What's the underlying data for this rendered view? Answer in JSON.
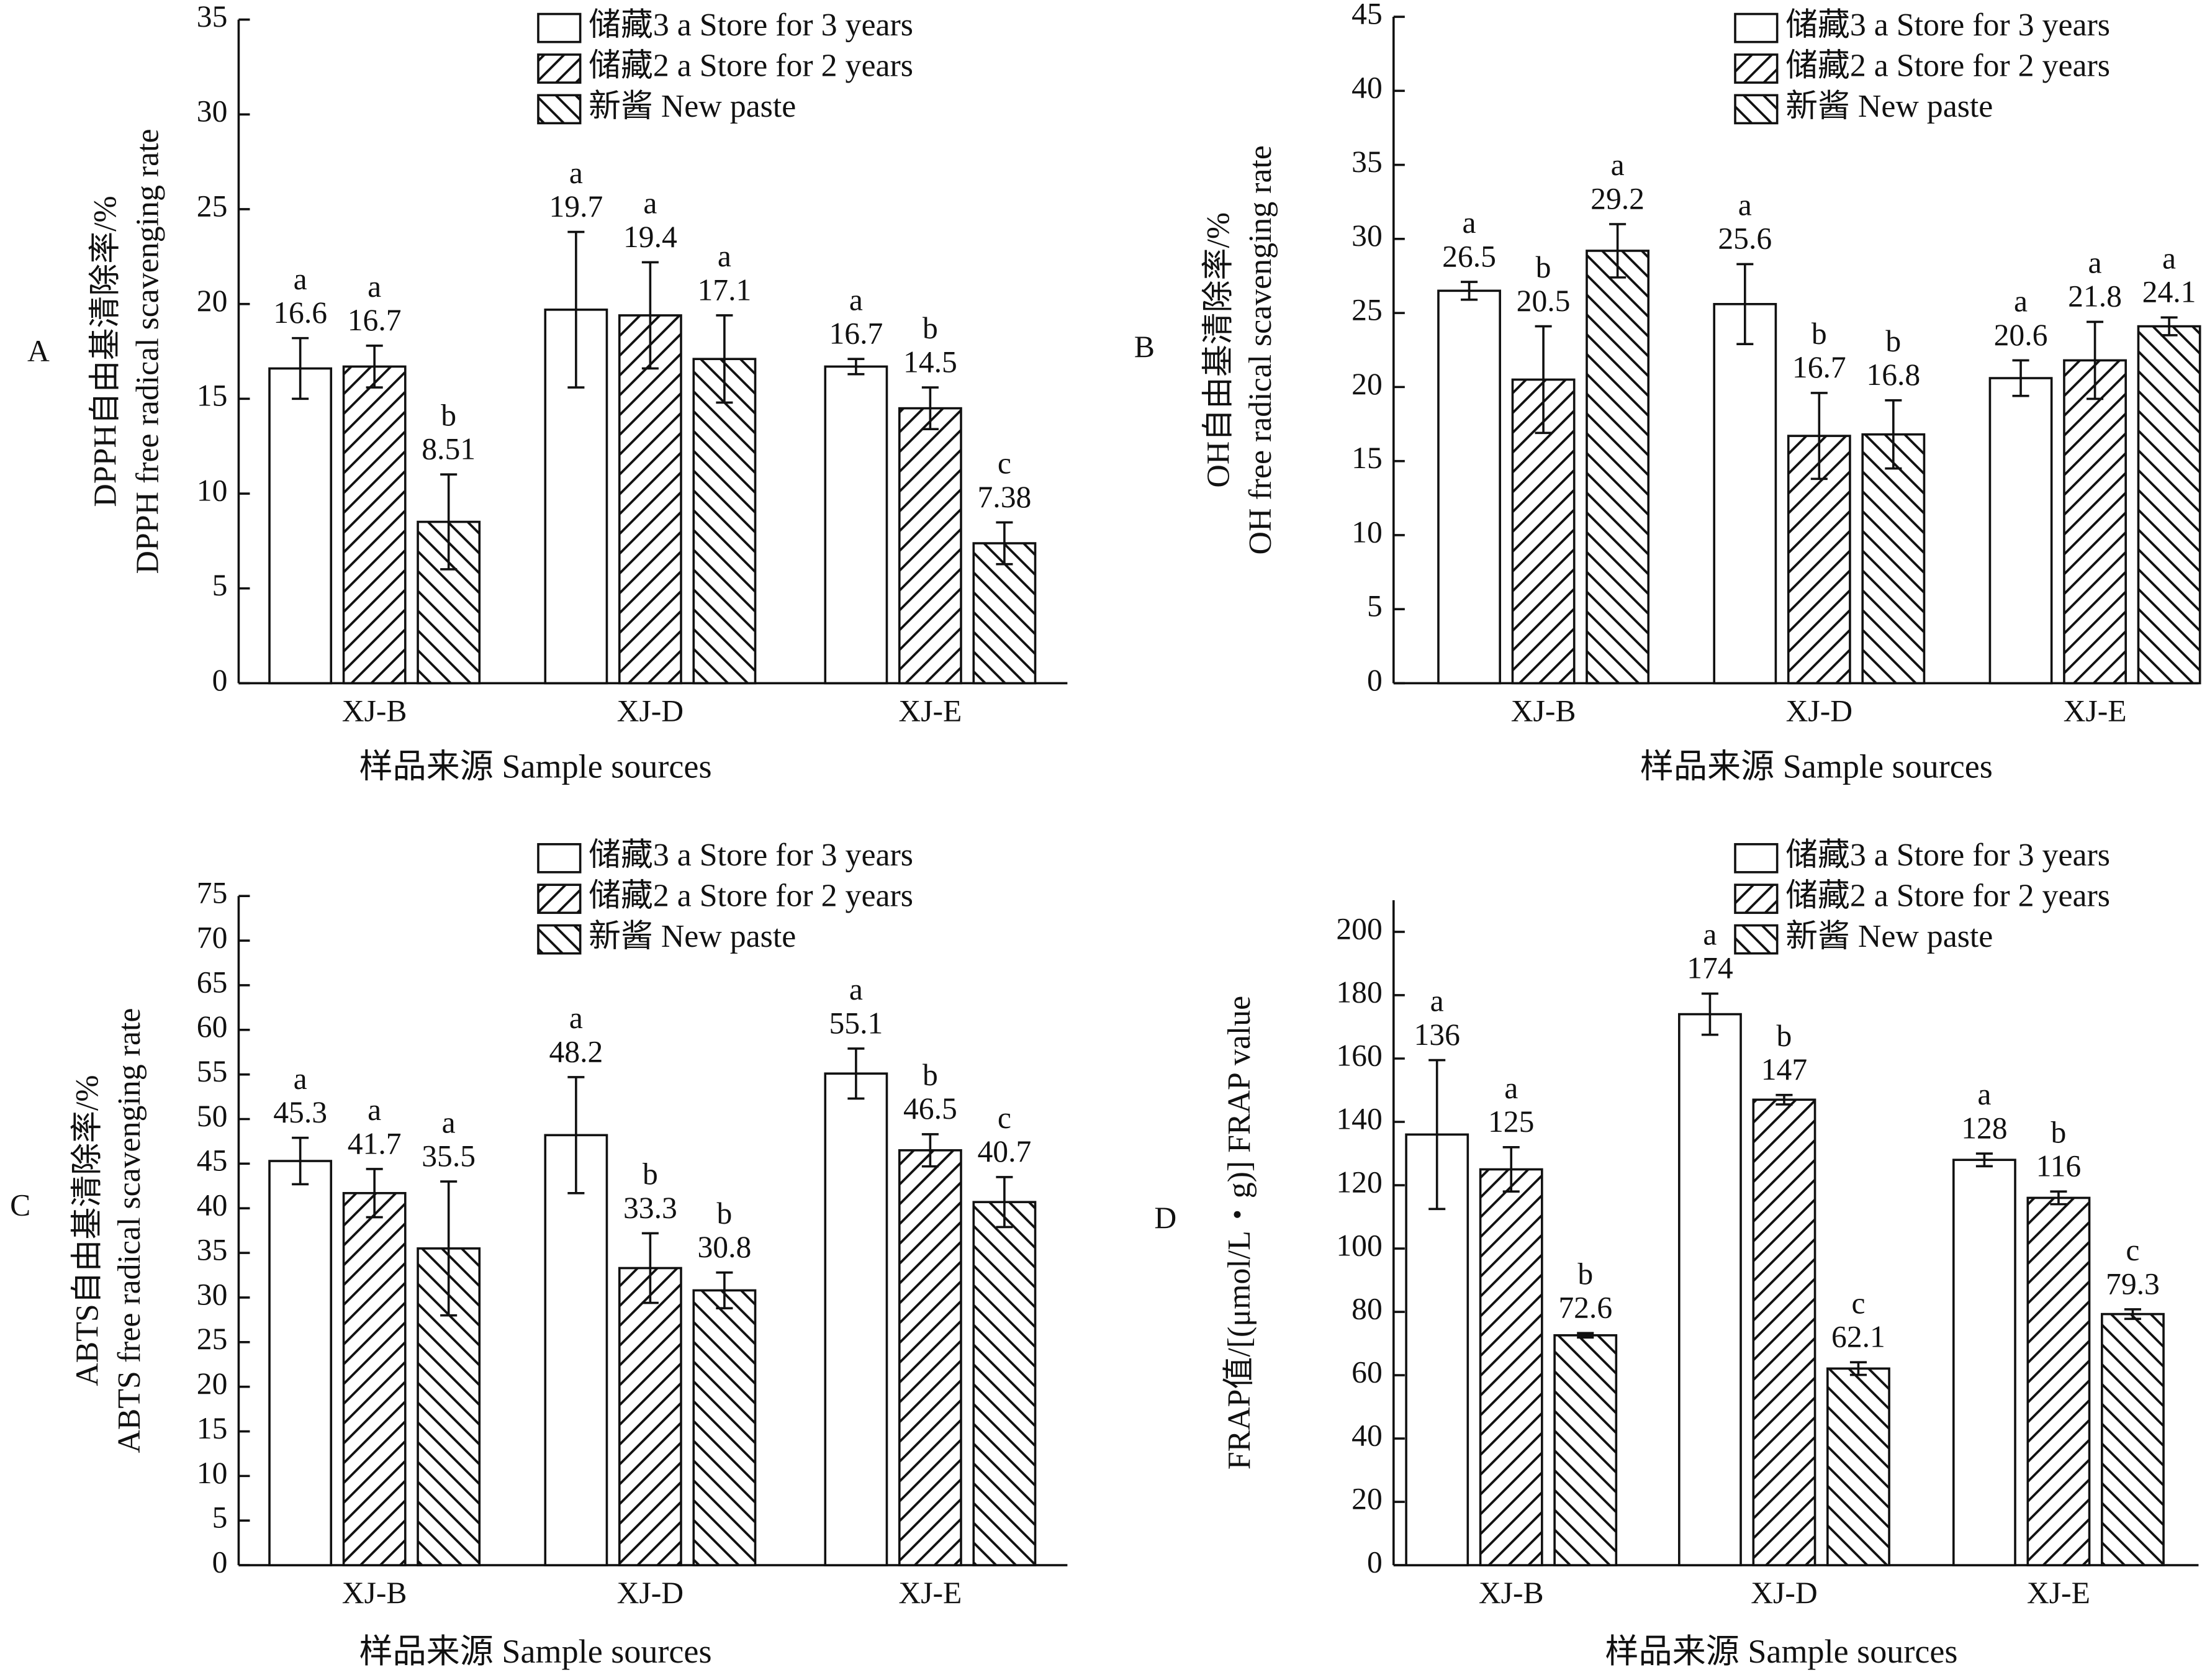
{
  "chart_data": [
    {
      "type": "bar",
      "panel_label": "A",
      "ylabel": [
        "DPPH自由基清除率/%",
        "DPPH free radical scavenging rate"
      ],
      "xlabel": "样品来源  Sample sources",
      "categories": [
        "XJ-B",
        "XJ-D",
        "XJ-E"
      ],
      "ylim": [
        0,
        35
      ],
      "yticks": [
        0,
        5,
        10,
        15,
        20,
        25,
        30,
        35
      ],
      "legend": "upper right",
      "series": [
        {
          "name": "储藏3 a  Store for 3 years",
          "pattern": "none",
          "values": [
            16.6,
            19.7,
            16.7
          ],
          "errors": [
            1.6,
            4.1,
            0.4
          ],
          "letters": [
            "a",
            "a",
            "a"
          ]
        },
        {
          "name": "储藏2 a  Store for 2 years",
          "pattern": "forward",
          "values": [
            16.7,
            19.4,
            14.5
          ],
          "errors": [
            1.1,
            2.8,
            1.1
          ],
          "letters": [
            "a",
            "a",
            "b"
          ]
        },
        {
          "name": "新酱  New paste",
          "pattern": "back",
          "values": [
            8.51,
            17.1,
            7.38
          ],
          "errors": [
            2.5,
            2.3,
            1.1
          ],
          "letters": [
            "b",
            "a",
            "c"
          ]
        }
      ]
    },
    {
      "type": "bar",
      "panel_label": "B",
      "ylabel": [
        "OH自由基清除率/%",
        "OH free radical scavenging rate"
      ],
      "xlabel": "样品来源  Sample sources",
      "categories": [
        "XJ-B",
        "XJ-D",
        "XJ-E"
      ],
      "ylim": [
        0,
        45
      ],
      "yticks": [
        0,
        5,
        10,
        15,
        20,
        25,
        30,
        35,
        40,
        45
      ],
      "legend": "upper right",
      "series": [
        {
          "name": "储藏3 a  Store for 3 years",
          "pattern": "none",
          "values": [
            26.5,
            25.6,
            20.6
          ],
          "errors": [
            0.6,
            2.7,
            1.2
          ],
          "letters": [
            "a",
            "a",
            "a"
          ]
        },
        {
          "name": "储藏2 a  Store for 2 years",
          "pattern": "forward",
          "values": [
            20.5,
            16.7,
            21.8
          ],
          "errors": [
            3.6,
            2.9,
            2.6
          ],
          "letters": [
            "b",
            "b",
            "a"
          ]
        },
        {
          "name": "新酱  New paste",
          "pattern": "back",
          "values": [
            29.2,
            16.8,
            24.1
          ],
          "errors": [
            1.8,
            2.3,
            0.6
          ],
          "letters": [
            "a",
            "b",
            "a"
          ]
        }
      ]
    },
    {
      "type": "bar",
      "panel_label": "C",
      "ylabel": [
        "ABTS自由基清除率/%",
        "ABTS free radical scavenging rate"
      ],
      "xlabel": "样品来源  Sample sources",
      "categories": [
        "XJ-B",
        "XJ-D",
        "XJ-E"
      ],
      "ylim": [
        0,
        75
      ],
      "yticks": [
        0,
        5,
        10,
        15,
        20,
        25,
        30,
        35,
        40,
        45,
        50,
        55,
        60,
        65,
        70,
        75
      ],
      "legend": "upper right",
      "series": [
        {
          "name": "储藏3 a  Store for 3 years",
          "pattern": "none",
          "values": [
            45.3,
            48.2,
            55.1
          ],
          "errors": [
            2.6,
            6.5,
            2.8
          ],
          "letters": [
            "a",
            "a",
            "a"
          ]
        },
        {
          "name": "储藏2 a  Store for 2 years",
          "pattern": "forward",
          "values": [
            41.7,
            33.3,
            46.5
          ],
          "errors": [
            2.7,
            3.9,
            1.8
          ],
          "letters": [
            "a",
            "b",
            "b"
          ]
        },
        {
          "name": "新酱  New paste",
          "pattern": "back",
          "values": [
            35.5,
            30.8,
            40.7
          ],
          "errors": [
            7.5,
            2.0,
            2.8
          ],
          "letters": [
            "a",
            "b",
            "c"
          ]
        }
      ]
    },
    {
      "type": "bar",
      "panel_label": "D",
      "ylabel": [
        "FRAP值/[(μmol/L・g)]  FRAP value"
      ],
      "xlabel": "样品来源  Sample sources",
      "categories": [
        "XJ-B",
        "XJ-D",
        "XJ-E"
      ],
      "ylim": [
        0,
        210
      ],
      "yticks": [
        0,
        20,
        40,
        60,
        80,
        100,
        120,
        140,
        160,
        180,
        200
      ],
      "legend": "upper right",
      "series": [
        {
          "name": "储藏3 a  Store for 3 years",
          "pattern": "none",
          "values": [
            136,
            174,
            128
          ],
          "errors": [
            23.5,
            6.5,
            2.0
          ],
          "letters": [
            "a",
            "a",
            "a"
          ]
        },
        {
          "name": "储藏2 a  Store for 2 years",
          "pattern": "forward",
          "values": [
            125,
            147,
            116
          ],
          "errors": [
            7.0,
            1.5,
            2.0
          ],
          "letters": [
            "a",
            "b",
            "b"
          ]
        },
        {
          "name": "新酱  New paste",
          "pattern": "back",
          "values": [
            72.6,
            62.1,
            79.3
          ],
          "errors": [
            0.7,
            2.0,
            1.5
          ],
          "letters": [
            "b",
            "c",
            "c"
          ]
        }
      ]
    }
  ]
}
